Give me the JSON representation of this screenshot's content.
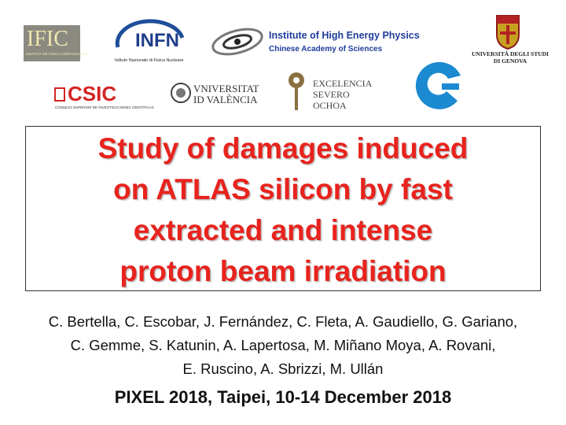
{
  "logos": {
    "ific": {
      "name": "IFIC",
      "subtitle": "INSTITUT DE FÍSICA CORPUSCULAR"
    },
    "infn": {
      "name": "INFN",
      "subtitle": "Istituto Nazionale di Fisica Nucleare"
    },
    "ihep": {
      "line1": "Institute of High Energy Physics",
      "line2": "Chinese Academy of Sciences"
    },
    "genova": {
      "line1": "UNIVERSITÀ DEGLI STUDI",
      "line2": "DI GENOVA"
    },
    "csic": {
      "name": "CSIC",
      "subtitle": "CONSEJO SUPERIOR DE INVESTIGACIONES CIENTÍFICAS"
    },
    "valencia": {
      "line1": "VNIVERSITAT",
      "line2": "ID VALÈNCIA"
    },
    "severo": {
      "line1": "EXCELENCIA",
      "line2": "SEVERO",
      "line3": "OCHOA"
    }
  },
  "title": {
    "lines": [
      "Study of damages induced",
      "on ATLAS silicon by fast",
      "extracted and intense",
      "proton beam irradiation"
    ]
  },
  "authors": {
    "lines": [
      "C. Bertella, C. Escobar, J. Fernández, C. Fleta, A. Gaudiello, G. Gariano,",
      "C. Gemme, S. Katunin, A. Lapertosa, M. Miñano Moya, A. Rovani,",
      "E. Ruscino, A. Sbrizzi, M. Ullán"
    ]
  },
  "conference": "PIXEL 2018, Taipei, 10-14 December 2018"
}
